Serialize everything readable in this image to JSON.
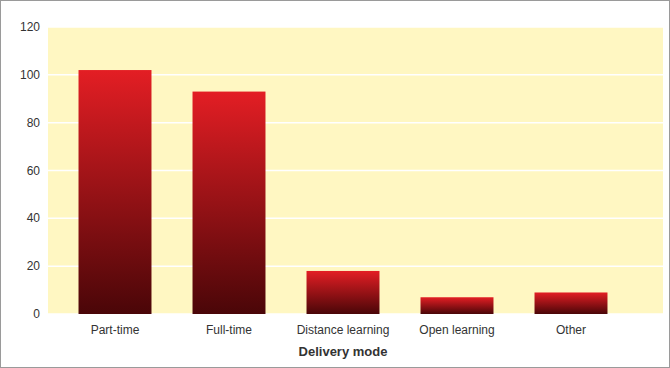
{
  "chart_data": {
    "type": "bar",
    "x_label": "Delivery mode",
    "categories": [
      "Part-time",
      "Full-time",
      "Distance learning",
      "Open learning",
      "Other"
    ],
    "values": [
      102,
      93,
      18,
      7,
      9
    ],
    "color": "#e31e24",
    "ylim": [
      0,
      120
    ],
    "yticks": [
      0,
      20,
      40,
      60,
      80,
      100,
      120
    ],
    "grid": true
  }
}
